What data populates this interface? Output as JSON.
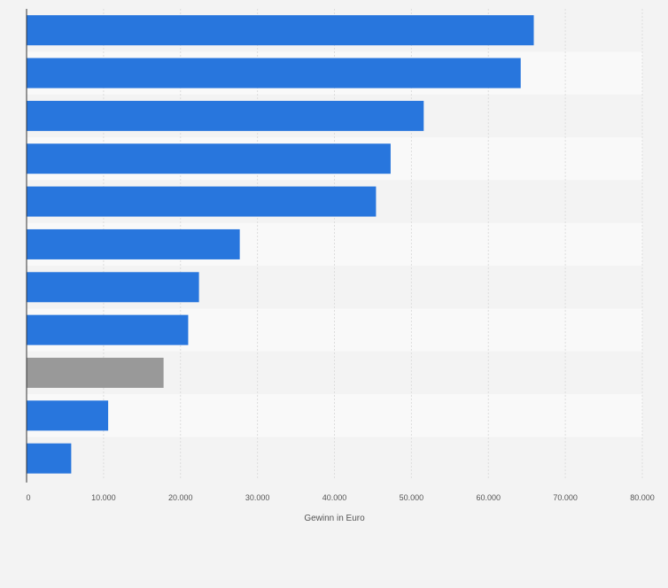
{
  "chart_data": {
    "type": "bar",
    "orientation": "horizontal",
    "title": "",
    "xlabel": "Gewinn in Euro",
    "ylabel": "",
    "xlim": [
      0,
      80000
    ],
    "ticks": [
      0,
      10000,
      20000,
      30000,
      40000,
      50000,
      60000,
      70000,
      80000
    ],
    "tick_labels": [
      "0",
      "10.000",
      "20.000",
      "30.000",
      "40.000",
      "50.000",
      "60.000",
      "70.000",
      "80.000"
    ],
    "grid": true,
    "categories": [
      "",
      "",
      "",
      "",
      "",
      "",
      "",
      "",
      "",
      "",
      ""
    ],
    "values": [
      65900,
      64200,
      51600,
      47300,
      45400,
      27700,
      22400,
      21000,
      17800,
      10600,
      5800
    ],
    "bar_colors": [
      "#2876dd",
      "#2876dd",
      "#2876dd",
      "#2876dd",
      "#2876dd",
      "#2876dd",
      "#2876dd",
      "#2876dd",
      "#999999",
      "#2876dd",
      "#2876dd"
    ],
    "colors": {
      "primary_bar": "#2876dd",
      "highlight_bar": "#999999",
      "band_light": "#f9f9f9",
      "band_dark": "#f3f3f3",
      "grid": "#dddddd",
      "axis": "#333333",
      "tick_text": "#555555"
    }
  }
}
